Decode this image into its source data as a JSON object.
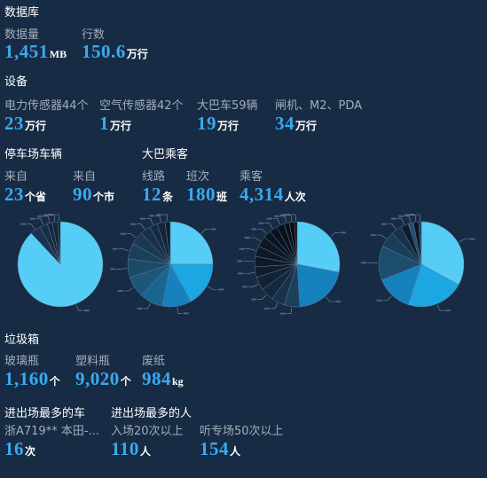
{
  "database": {
    "title": "数据库",
    "items": [
      {
        "label": "数据量",
        "value": "1,451",
        "unit": "MB"
      },
      {
        "label": "行数",
        "value": "150.6",
        "unit": "万行"
      }
    ]
  },
  "devices": {
    "title": "设备",
    "items": [
      {
        "label": "电力传感器44个",
        "value": "23",
        "unit": "万行"
      },
      {
        "label": "空气传感器42个",
        "value": "1",
        "unit": "万行"
      },
      {
        "label": "大巴车59辆",
        "value": "19",
        "unit": "万行"
      },
      {
        "label": "闸机、M2、PDA",
        "value": "34",
        "unit": "万行"
      }
    ]
  },
  "parking": {
    "title": "停车场车辆",
    "items": [
      {
        "label": "来自",
        "value": "23",
        "unit": "个省"
      },
      {
        "label": "来自",
        "value": "90",
        "unit": "个市"
      }
    ]
  },
  "bus": {
    "title": "大巴乘客",
    "items": [
      {
        "label": "线路",
        "value": "12",
        "unit": "条"
      },
      {
        "label": "班次",
        "value": "180",
        "unit": "班"
      },
      {
        "label": "乘客",
        "value": "4,314",
        "unit": "人次"
      }
    ]
  },
  "trash": {
    "title": "垃圾箱",
    "items": [
      {
        "label": "玻璃瓶",
        "value": "1,160",
        "unit": "个"
      },
      {
        "label": "塑料瓶",
        "value": "9,020",
        "unit": "个"
      },
      {
        "label": "废纸",
        "value": "984",
        "unit": "kg"
      }
    ]
  },
  "top_car": {
    "title": "进出场最多的车",
    "items": [
      {
        "label": "浙A719** 本田-...",
        "value": "16",
        "unit": "次"
      }
    ]
  },
  "top_people": {
    "title": "进出场最多的人",
    "items": [
      {
        "label": "入场20次以上",
        "value": "110",
        "unit": "人"
      },
      {
        "label": "听专场50次以上",
        "value": "154",
        "unit": "人"
      }
    ]
  },
  "colors": {
    "background": "#172b44",
    "value": "#38aaf0",
    "label": "#a3adb9",
    "title": "#ffffff"
  },
  "chart_data": [
    {
      "type": "pie",
      "values": [
        88,
        4,
        3,
        2,
        2,
        1
      ],
      "colors": [
        "#56cdf7",
        "#1b3350",
        "#182d47",
        "#16283f",
        "#142338",
        "#121f32"
      ]
    },
    {
      "type": "pie",
      "values": [
        25,
        17,
        11,
        9,
        8,
        7,
        6,
        5,
        4,
        3,
        3,
        2
      ],
      "colors": [
        "#56cdf7",
        "#1ca6e2",
        "#1682bd",
        "#1a6690",
        "#1c5678",
        "#1c4a68",
        "#1b405c",
        "#1a3852",
        "#183048",
        "#162a40",
        "#142438",
        "#121f31"
      ]
    },
    {
      "type": "pie",
      "values": [
        28,
        21,
        6,
        5,
        5,
        5,
        4,
        4,
        4,
        4,
        3,
        3,
        3,
        2,
        2,
        1
      ],
      "colors": [
        "#56cdf7",
        "#1682bd",
        "#1c3f5b",
        "#18324a",
        "#14283c",
        "#122235",
        "#101d2d",
        "#0f1a29",
        "#0e1826",
        "#0d1623",
        "#0c1420",
        "#0b121d",
        "#0b111b",
        "#0a1019",
        "#0a0f17",
        "#090e15"
      ]
    },
    {
      "type": "pie",
      "values": [
        33,
        22,
        14,
        13,
        6,
        4,
        3,
        2,
        2,
        1
      ],
      "colors": [
        "#56cdf7",
        "#1ca6e2",
        "#1682bd",
        "#1c4e6e",
        "#1a3d58",
        "#17324a",
        "#0f1c2c",
        "#22506e",
        "#0c1521",
        "#1a3a55"
      ]
    }
  ]
}
